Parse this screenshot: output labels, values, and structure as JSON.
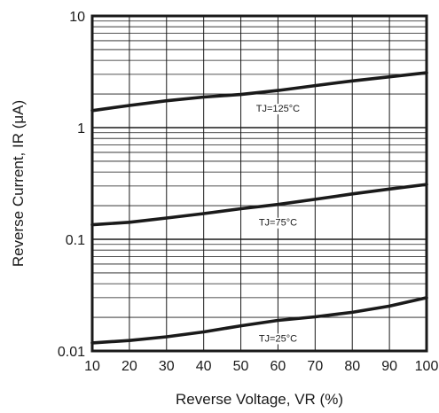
{
  "chart_data": {
    "type": "line",
    "xlabel": "Reverse Voltage, VR (%)",
    "ylabel": "Reverse Current, IR (μA)",
    "x_ticks": [
      "10",
      "20",
      "30",
      "40",
      "50",
      "60",
      "70",
      "80",
      "90",
      "100"
    ],
    "y_ticks": [
      "0.01",
      "0.1",
      "1",
      "10"
    ],
    "xlim": [
      10,
      100
    ],
    "ylim": [
      0.01,
      10
    ],
    "y_scale": "log",
    "grid": true,
    "line_color": "#1a1a1a",
    "series": [
      {
        "name": "TJ=125°C",
        "x": [
          10,
          20,
          30,
          40,
          50,
          60,
          70,
          80,
          90,
          100
        ],
        "y": [
          1.42,
          1.58,
          1.74,
          1.88,
          1.98,
          2.15,
          2.38,
          2.62,
          2.85,
          3.1
        ]
      },
      {
        "name": "TJ=75°C",
        "x": [
          10,
          20,
          30,
          40,
          50,
          60,
          70,
          80,
          90,
          100
        ],
        "y": [
          0.135,
          0.142,
          0.155,
          0.17,
          0.188,
          0.205,
          0.228,
          0.255,
          0.282,
          0.31
        ]
      },
      {
        "name": "TJ=25°C",
        "x": [
          10,
          20,
          30,
          40,
          50,
          60,
          70,
          80,
          90,
          100
        ],
        "y": [
          0.0118,
          0.0124,
          0.0134,
          0.0148,
          0.0168,
          0.0188,
          0.0202,
          0.0222,
          0.0252,
          0.03
        ]
      }
    ]
  }
}
